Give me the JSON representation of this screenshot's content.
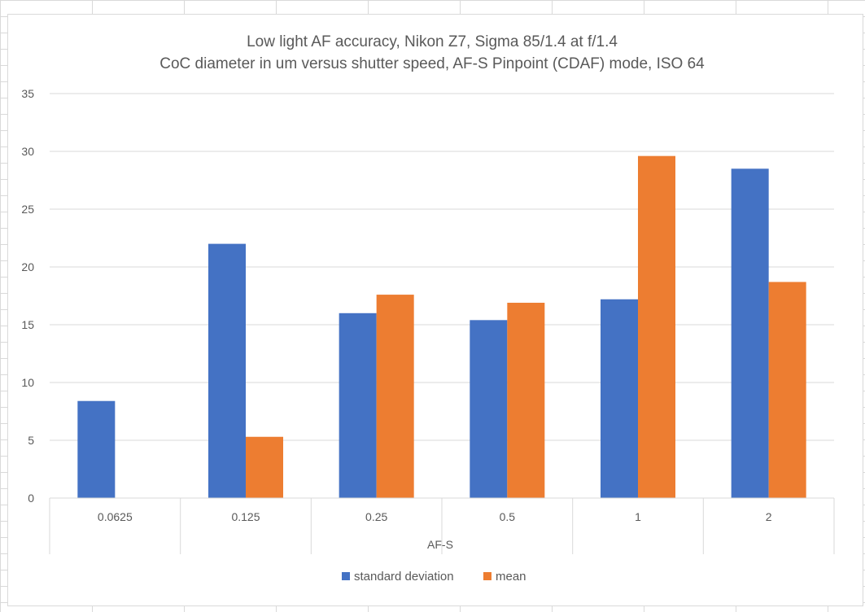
{
  "chart_data": {
    "type": "bar",
    "title": "Low light AF accuracy, Nikon Z7, Sigma 85/1.4 at f/1.4",
    "subtitle": "CoC diameter in um versus shutter speed, AF-S Pinpoint (CDAF) mode, ISO 64",
    "categories": [
      "0.0625",
      "0.125",
      "0.25",
      "0.5",
      "1",
      "2"
    ],
    "group_label": "AF-S",
    "series": [
      {
        "name": "standard deviation",
        "color": "#4472C4",
        "values": [
          8.4,
          22.0,
          16.0,
          15.4,
          17.2,
          28.5
        ]
      },
      {
        "name": "mean",
        "color": "#ED7D31",
        "values": [
          null,
          5.3,
          17.6,
          16.9,
          29.6,
          18.7
        ]
      }
    ],
    "ylim": [
      0,
      35
    ],
    "yticks": [
      0,
      5,
      10,
      15,
      20,
      25,
      30,
      35
    ],
    "grid": true,
    "legend_position": "bottom"
  }
}
